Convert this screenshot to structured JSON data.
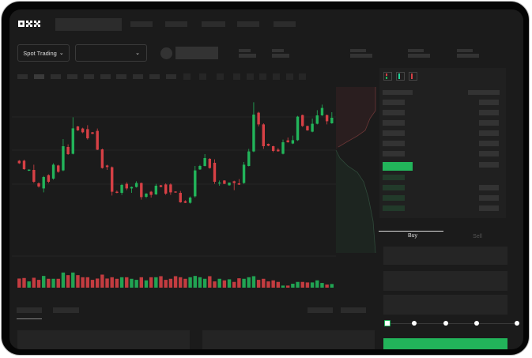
{
  "header": {
    "logo": "OKX"
  },
  "market_bar": {
    "mode_select": "Spot Trading",
    "mode_icon": "chevron-down-icon",
    "pair_icon": "chevron-down-icon"
  },
  "trade_panel": {
    "tabs": [
      "Buy",
      "Sell"
    ],
    "active_tab": "Buy",
    "slider_level_percent": 0,
    "slider_stops": 5
  },
  "colors": {
    "up": "#22b45a",
    "down": "#d64045",
    "background": "#1b1b1b",
    "accent": "#22b45a"
  },
  "chart_data": {
    "type": "candlestick",
    "candles": [
      [
        58.3,
        56.7,
        58.7,
        56.3
      ],
      [
        58.3,
        53,
        59,
        52.5
      ],
      [
        52,
        52.7,
        52.8,
        51.8
      ],
      [
        52.5,
        45,
        55.8,
        44.2
      ],
      [
        44,
        42,
        44.7,
        41.3
      ],
      [
        40.8,
        48,
        48.7,
        38.3
      ],
      [
        49.2,
        45,
        49.7,
        44.2
      ],
      [
        47,
        55.8,
        56.7,
        46.3
      ],
      [
        55.3,
        51.3,
        55.8,
        50.7
      ],
      [
        52.2,
        67.5,
        72,
        51.7
      ],
      [
        67,
        62.5,
        68.7,
        62
      ],
      [
        62.7,
        78.8,
        85.8,
        62.3
      ],
      [
        80,
        77.5,
        80.3,
        77.2
      ],
      [
        78.7,
        76.3,
        79.2,
        75.7
      ],
      [
        78.3,
        72.5,
        80.8,
        71.7
      ],
      [
        76.3,
        75.3,
        76.5,
        75.2
      ],
      [
        77.2,
        65.3,
        78.7,
        65
      ],
      [
        65.5,
        53.7,
        66,
        53.3
      ],
      [
        55.3,
        54.3,
        55.8,
        52.5
      ],
      [
        54.2,
        38.7,
        54.7,
        36.3
      ],
      [
        38.7,
        38,
        39.5,
        37.7
      ],
      [
        38,
        43,
        43.7,
        36.7
      ],
      [
        43.7,
        40.8,
        44.7,
        39.7
      ],
      [
        40.8,
        41.7,
        42,
        38
      ],
      [
        41.7,
        44.2,
        45.3,
        41.3
      ],
      [
        44.2,
        35.3,
        44.5,
        33.7
      ],
      [
        35.5,
        37.5,
        37.8,
        34.7
      ],
      [
        38.7,
        36.7,
        39.2,
        35
      ],
      [
        37,
        42.5,
        43.7,
        36.7
      ],
      [
        42.8,
        41.7,
        43,
        41.5
      ],
      [
        43.3,
        37.5,
        44,
        36.7
      ],
      [
        43.3,
        38.3,
        44,
        36.7
      ],
      [
        38.8,
        38.3,
        39,
        38
      ],
      [
        38,
        32,
        39.2,
        31.7
      ],
      [
        32.7,
        31.7,
        33.3,
        31.5
      ],
      [
        31.7,
        35,
        35.7,
        31.2
      ],
      [
        35.8,
        52.2,
        55,
        35
      ],
      [
        52.8,
        55,
        55.7,
        52.5
      ],
      [
        55,
        60,
        62.5,
        54.7
      ],
      [
        59.5,
        53.7,
        60,
        53.3
      ],
      [
        57,
        45,
        59.2,
        43.7
      ],
      [
        44.2,
        44.5,
        45.8,
        42.5
      ],
      [
        45.8,
        43.7,
        46,
        43.5
      ],
      [
        42.8,
        44.5,
        44.5,
        42.5
      ],
      [
        45.3,
        44.2,
        45.7,
        39.7
      ],
      [
        44,
        43.2,
        46.7,
        43
      ],
      [
        44.2,
        55.8,
        57.5,
        43.7
      ],
      [
        55,
        64.2,
        65.8,
        54.7
      ],
      [
        64.2,
        87.5,
        95.3,
        63.7
      ],
      [
        88.7,
        81.3,
        89.3,
        80
      ],
      [
        81.3,
        67.5,
        82,
        65.8
      ],
      [
        69,
        67.8,
        69.2,
        67.5
      ],
      [
        67.5,
        64.5,
        67.8,
        63.7
      ],
      [
        65.3,
        64.3,
        66.3,
        64
      ],
      [
        62.7,
        70,
        71.7,
        62.3
      ],
      [
        71.2,
        70,
        73,
        69.7
      ],
      [
        69.2,
        71.3,
        74.2,
        68.8
      ],
      [
        71.3,
        86.2,
        86.7,
        70.8
      ],
      [
        87.2,
        80.3,
        87.5,
        79.7
      ],
      [
        80.3,
        77.5,
        80.5,
        77.3
      ],
      [
        76.7,
        81.7,
        85,
        76.3
      ],
      [
        81.7,
        87,
        90.3,
        81.3
      ],
      [
        87,
        91.7,
        93.8,
        86.7
      ],
      [
        87.2,
        83.3,
        87.5,
        81.3
      ],
      [
        82,
        85.5,
        89,
        81.7
      ]
    ],
    "candle_format": [
      "open",
      "close",
      "high",
      "low"
    ],
    "volume": [
      35,
      37,
      24,
      38,
      30,
      45,
      34,
      34,
      34,
      58,
      48,
      58,
      48,
      40,
      40,
      30,
      35,
      50,
      35,
      40,
      34,
      40,
      40,
      34,
      30,
      40,
      28,
      40,
      40,
      44,
      30,
      34,
      44,
      40,
      34,
      40,
      45,
      40,
      34,
      44,
      24,
      34,
      28,
      32,
      22,
      36,
      34,
      40,
      44,
      30,
      34,
      24,
      28,
      22,
      8,
      8,
      15,
      22,
      22,
      20,
      20,
      28,
      18,
      12,
      14
    ],
    "grid": true
  }
}
